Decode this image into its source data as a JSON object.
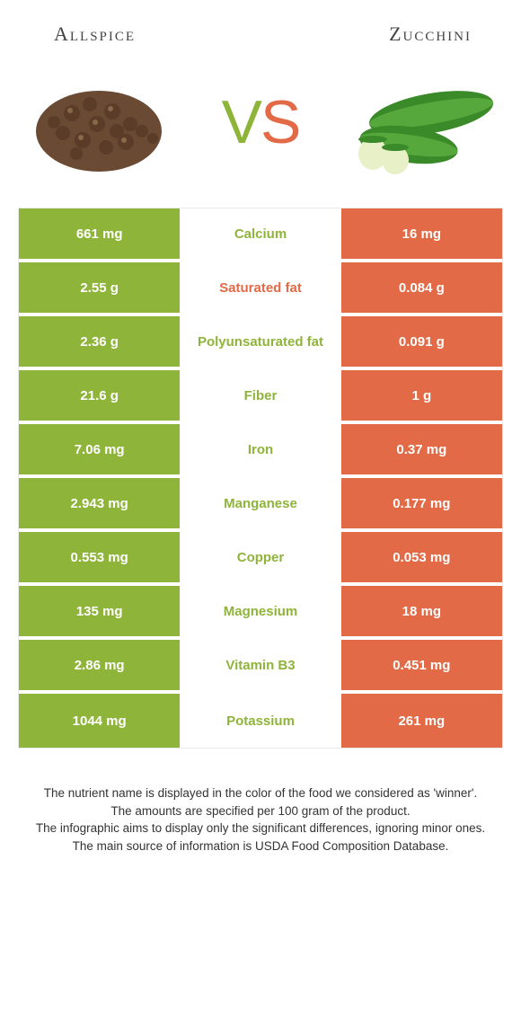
{
  "header": {
    "left": "Allspice",
    "right": "Zucchini"
  },
  "vs": {
    "v": "V",
    "s": "S"
  },
  "colors": {
    "left_bg": "#8fb43a",
    "right_bg": "#e36a46",
    "left_label": "#8fb43a",
    "right_label": "#e36a46"
  },
  "rows": [
    {
      "left": "661 mg",
      "label": "Calcium",
      "right": "16 mg",
      "winner": "left"
    },
    {
      "left": "2.55 g",
      "label": "Saturated fat",
      "right": "0.084 g",
      "winner": "right"
    },
    {
      "left": "2.36 g",
      "label": "Polyunsaturated fat",
      "right": "0.091 g",
      "winner": "left"
    },
    {
      "left": "21.6 g",
      "label": "Fiber",
      "right": "1 g",
      "winner": "left"
    },
    {
      "left": "7.06 mg",
      "label": "Iron",
      "right": "0.37 mg",
      "winner": "left"
    },
    {
      "left": "2.943 mg",
      "label": "Manganese",
      "right": "0.177 mg",
      "winner": "left"
    },
    {
      "left": "0.553 mg",
      "label": "Copper",
      "right": "0.053 mg",
      "winner": "left"
    },
    {
      "left": "135 mg",
      "label": "Magnesium",
      "right": "18 mg",
      "winner": "left"
    },
    {
      "left": "2.86 mg",
      "label": "Vitamin B3",
      "right": "0.451 mg",
      "winner": "left"
    },
    {
      "left": "1044 mg",
      "label": "Potassium",
      "right": "261 mg",
      "winner": "left"
    }
  ],
  "footer": {
    "l1": "The nutrient name is displayed in the color of the food we considered as 'winner'.",
    "l2": "The amounts are specified per 100 gram of the product.",
    "l3": "The infographic aims to display only the significant differences, ignoring minor ones.",
    "l4": "The main source of information is USDA Food Composition Database."
  }
}
